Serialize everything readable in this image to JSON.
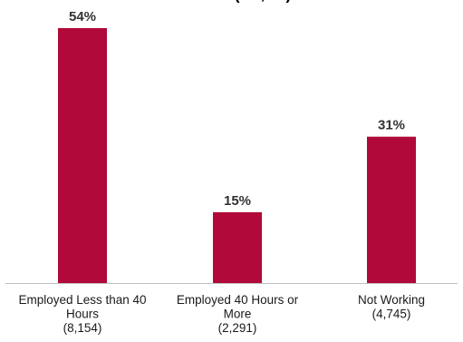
{
  "chart_data": {
    "type": "bar",
    "title": "(… , …)",
    "categories": [
      [
        "Employed Less than 40",
        "Hours",
        "(8,154)"
      ],
      [
        "Employed 40 Hours or",
        "More",
        "(2,291)"
      ],
      [
        "Not Working",
        "(4,745)"
      ]
    ],
    "values": [
      54,
      15,
      31
    ],
    "value_labels": [
      "54%",
      "15%",
      "31%"
    ],
    "ylim": [
      0,
      54
    ],
    "bar_color": "#b0093a",
    "axis_color": "#bfbfbf",
    "grid": false,
    "legend": "none"
  }
}
